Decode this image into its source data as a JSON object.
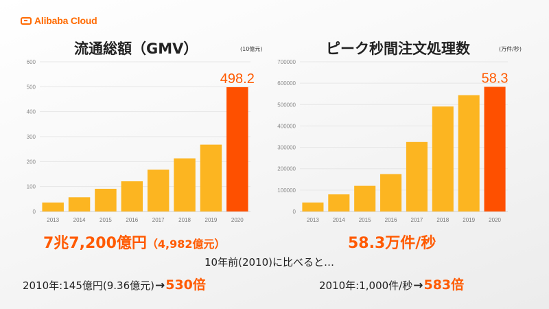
{
  "brand": {
    "logo_text": "Alibaba Cloud",
    "color": "#ff6a00"
  },
  "colors": {
    "bar": "#fcb521",
    "highlight": "#fe5000",
    "accent_text": "#ff5a00"
  },
  "left": {
    "title": "流通総額（GMV）",
    "unit": "(10億元)",
    "headline_main": "7兆7,200億円",
    "headline_sub": "（4,982億元）",
    "comparison_left": "2010年:145億円(9.36億元)",
    "arrow": "→",
    "multiplier": "530倍"
  },
  "right": {
    "title": "ピーク秒間注文処理数",
    "unit": "(万件/秒)",
    "headline": "58.3万件/秒",
    "comparison_left": "2010年:1,000件/秒",
    "arrow": "→",
    "multiplier": "583倍"
  },
  "middle_note": "10年前(2010)に比べると…",
  "chart_data": [
    {
      "type": "bar",
      "title": "流通総額（GMV）",
      "ylabel": "(10億元)",
      "categories": [
        "2013",
        "2014",
        "2015",
        "2016",
        "2017",
        "2018",
        "2019",
        "2020"
      ],
      "values": [
        36,
        57,
        91,
        121,
        168,
        213,
        268,
        498.2
      ],
      "highlight_index": 7,
      "data_labels": [
        {
          "index": 7,
          "text": "498.2"
        }
      ],
      "ylim": [
        0,
        600
      ],
      "yticks": [
        0,
        100,
        200,
        300,
        400,
        500,
        600
      ],
      "ytick_labels": [
        "0",
        "100",
        "200",
        "300",
        "400",
        "500",
        "600"
      ]
    },
    {
      "type": "bar",
      "title": "ピーク秒間注文処理数",
      "ylabel": "(万件/秒)",
      "categories": [
        "2013",
        "2014",
        "2015",
        "2016",
        "2017",
        "2018",
        "2019",
        "2020"
      ],
      "values": [
        42000,
        80000,
        120000,
        175000,
        325000,
        491000,
        544000,
        583000
      ],
      "highlight_index": 7,
      "data_labels": [
        {
          "index": 7,
          "text": "58.3"
        }
      ],
      "ylim": [
        0,
        700000
      ],
      "yticks": [
        0,
        100000,
        200000,
        300000,
        400000,
        500000,
        600000,
        700000
      ],
      "ytick_labels": [
        "0",
        "100000",
        "200000",
        "300000",
        "400000",
        "500000",
        "600000",
        "700000"
      ]
    }
  ]
}
